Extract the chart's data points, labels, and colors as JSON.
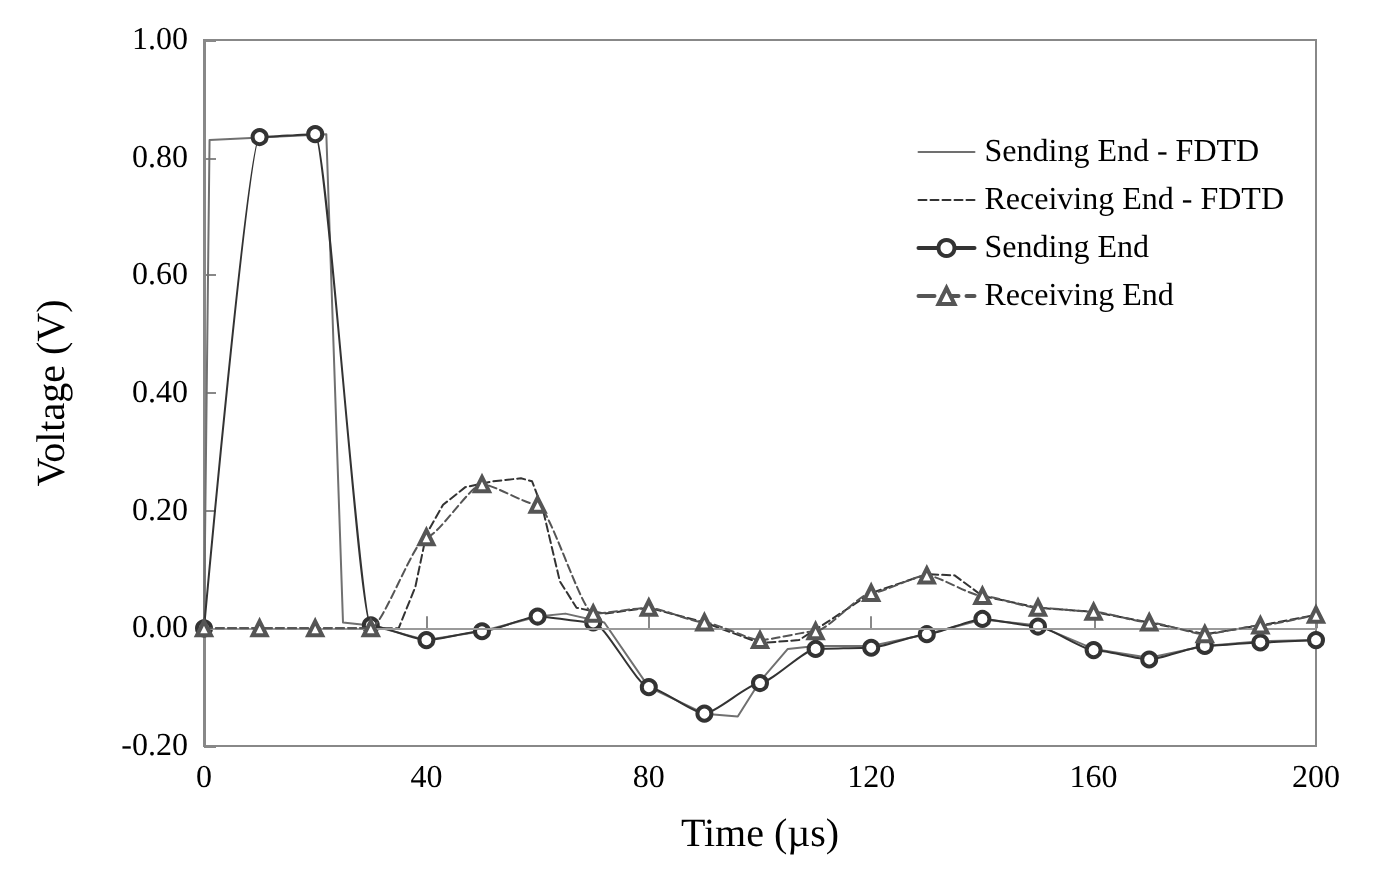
{
  "chart_data": {
    "type": "line",
    "xlabel": "Time (µs)",
    "ylabel": "Voltage (V)",
    "xlim": [
      0,
      200
    ],
    "ylim": [
      -0.2,
      1.0
    ],
    "xticks": [
      0,
      40,
      80,
      120,
      160,
      200
    ],
    "yticks": [
      {
        "value": -0.2,
        "label": "-0.20"
      },
      {
        "value": 0,
        "label": "0.00"
      },
      {
        "value": 0.2,
        "label": "0.20"
      },
      {
        "value": 0.4,
        "label": "0.40"
      },
      {
        "value": 0.6,
        "label": "0.60"
      },
      {
        "value": 0.8,
        "label": "0.80"
      },
      {
        "value": 1.0,
        "label": "1.00"
      }
    ],
    "grid": false,
    "legend": "top right",
    "ref_lines": [
      {
        "axis": "y",
        "value": 0,
        "color": "#9a9a9a",
        "line_style": "solid"
      }
    ],
    "series": [
      {
        "name": "Sending End - FDTD",
        "color": "#707070",
        "marker": "none",
        "line_style": "solid",
        "x": [
          0,
          1,
          22,
          25,
          30,
          40,
          50,
          60,
          65,
          72,
          80,
          90,
          96,
          100,
          105,
          110,
          120,
          130,
          140,
          150,
          160,
          170,
          180,
          190,
          200
        ],
        "values": [
          0,
          0.83,
          0.84,
          0.01,
          0.005,
          -0.02,
          -0.005,
          0.02,
          0.025,
          0.01,
          -0.1,
          -0.145,
          -0.15,
          -0.09,
          -0.035,
          -0.03,
          -0.03,
          -0.01,
          0.015,
          0.005,
          -0.035,
          -0.05,
          -0.03,
          -0.022,
          -0.02
        ]
      },
      {
        "name": "Receiving End - FDTD",
        "color": "#333333",
        "marker": "none",
        "line_style": "dashed",
        "x": [
          0,
          35,
          38,
          40,
          43,
          47,
          52,
          57,
          59,
          61,
          64,
          67,
          72,
          80,
          90,
          100,
          107,
          112,
          120,
          130,
          135,
          140,
          150,
          160,
          170,
          180,
          190,
          200
        ],
        "values": [
          0,
          0,
          0.07,
          0.16,
          0.21,
          0.24,
          0.25,
          0.255,
          0.25,
          0.2,
          0.08,
          0.035,
          0.025,
          0.035,
          0.01,
          -0.025,
          -0.02,
          0.01,
          0.06,
          0.092,
          0.09,
          0.055,
          0.035,
          0.028,
          0.01,
          -0.01,
          0.005,
          0.023
        ]
      },
      {
        "name": "Sending End",
        "color": "#333333",
        "marker": "circle",
        "line_style": "solid",
        "x": [
          0,
          10,
          20,
          30,
          40,
          50,
          60,
          70,
          80,
          90,
          100,
          110,
          120,
          130,
          140,
          150,
          160,
          170,
          180,
          190,
          200
        ],
        "values": [
          0,
          0.835,
          0.84,
          0.005,
          -0.02,
          -0.005,
          0.02,
          0.01,
          -0.1,
          -0.145,
          -0.093,
          -0.035,
          -0.033,
          -0.01,
          0.016,
          0.003,
          -0.037,
          -0.053,
          -0.03,
          -0.024,
          -0.02
        ]
      },
      {
        "name": "Receiving End",
        "color": "#555555",
        "marker": "triangle",
        "line_style": "dashed",
        "x": [
          0,
          10,
          20,
          30,
          40,
          50,
          60,
          70,
          80,
          90,
          100,
          110,
          120,
          130,
          140,
          150,
          160,
          170,
          180,
          190,
          200
        ],
        "values": [
          0,
          0,
          0,
          0,
          0.155,
          0.245,
          0.21,
          0.025,
          0.035,
          0.01,
          -0.02,
          -0.005,
          0.06,
          0.09,
          0.055,
          0.035,
          0.028,
          0.01,
          -0.01,
          0.005,
          0.023
        ]
      }
    ]
  }
}
